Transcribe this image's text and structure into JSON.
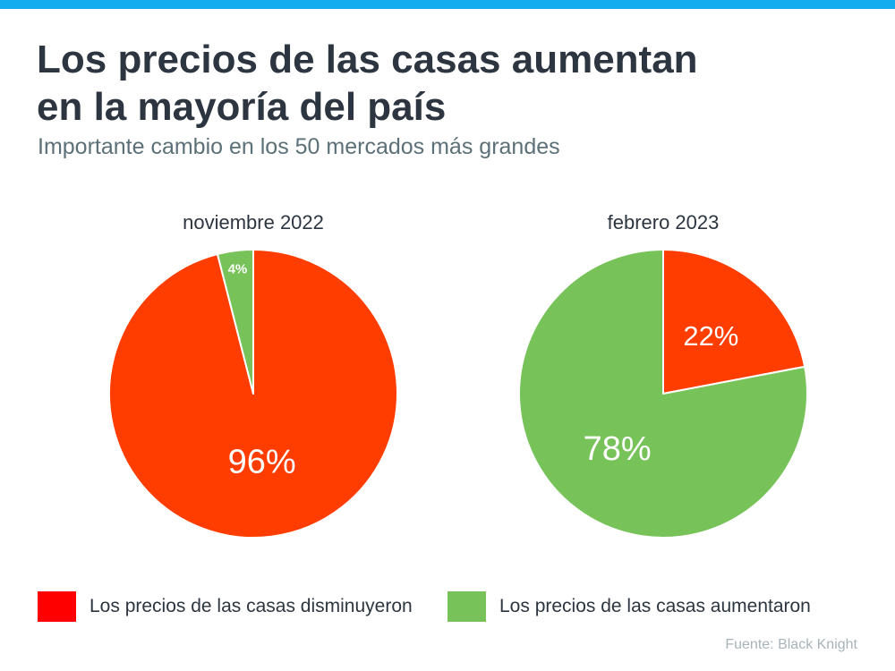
{
  "colors": {
    "top_bar": "#14ABEF",
    "decreased": "#FF3D00",
    "increased": "#77C35A",
    "legend_decreased": "#FF0000",
    "legend_increased": "#77C35A"
  },
  "header": {
    "title_line1": "Los precios de las casas aumentan",
    "title_line2": "en la mayoría del país",
    "subtitle": "Importante cambio en los 50 mercados más grandes"
  },
  "legend": {
    "decreased_label": "Los precios de las casas disminuyeron",
    "increased_label": "Los precios de las casas aumentaron"
  },
  "source": "Fuente: Black Knight",
  "chart_data": [
    {
      "type": "pie",
      "title": "noviembre 2022",
      "slices": [
        {
          "name": "Los precios de las casas disminuyeron",
          "key": "decreased",
          "value": 96,
          "label": "96%"
        },
        {
          "name": "Los precios de las casas aumentaron",
          "key": "increased",
          "value": 4,
          "label": "4%"
        }
      ]
    },
    {
      "type": "pie",
      "title": "febrero 2023",
      "slices": [
        {
          "name": "Los precios de las casas disminuyeron",
          "key": "decreased",
          "value": 22,
          "label": "22%"
        },
        {
          "name": "Los precios de las casas aumentaron",
          "key": "increased",
          "value": 78,
          "label": "78%"
        }
      ]
    }
  ]
}
